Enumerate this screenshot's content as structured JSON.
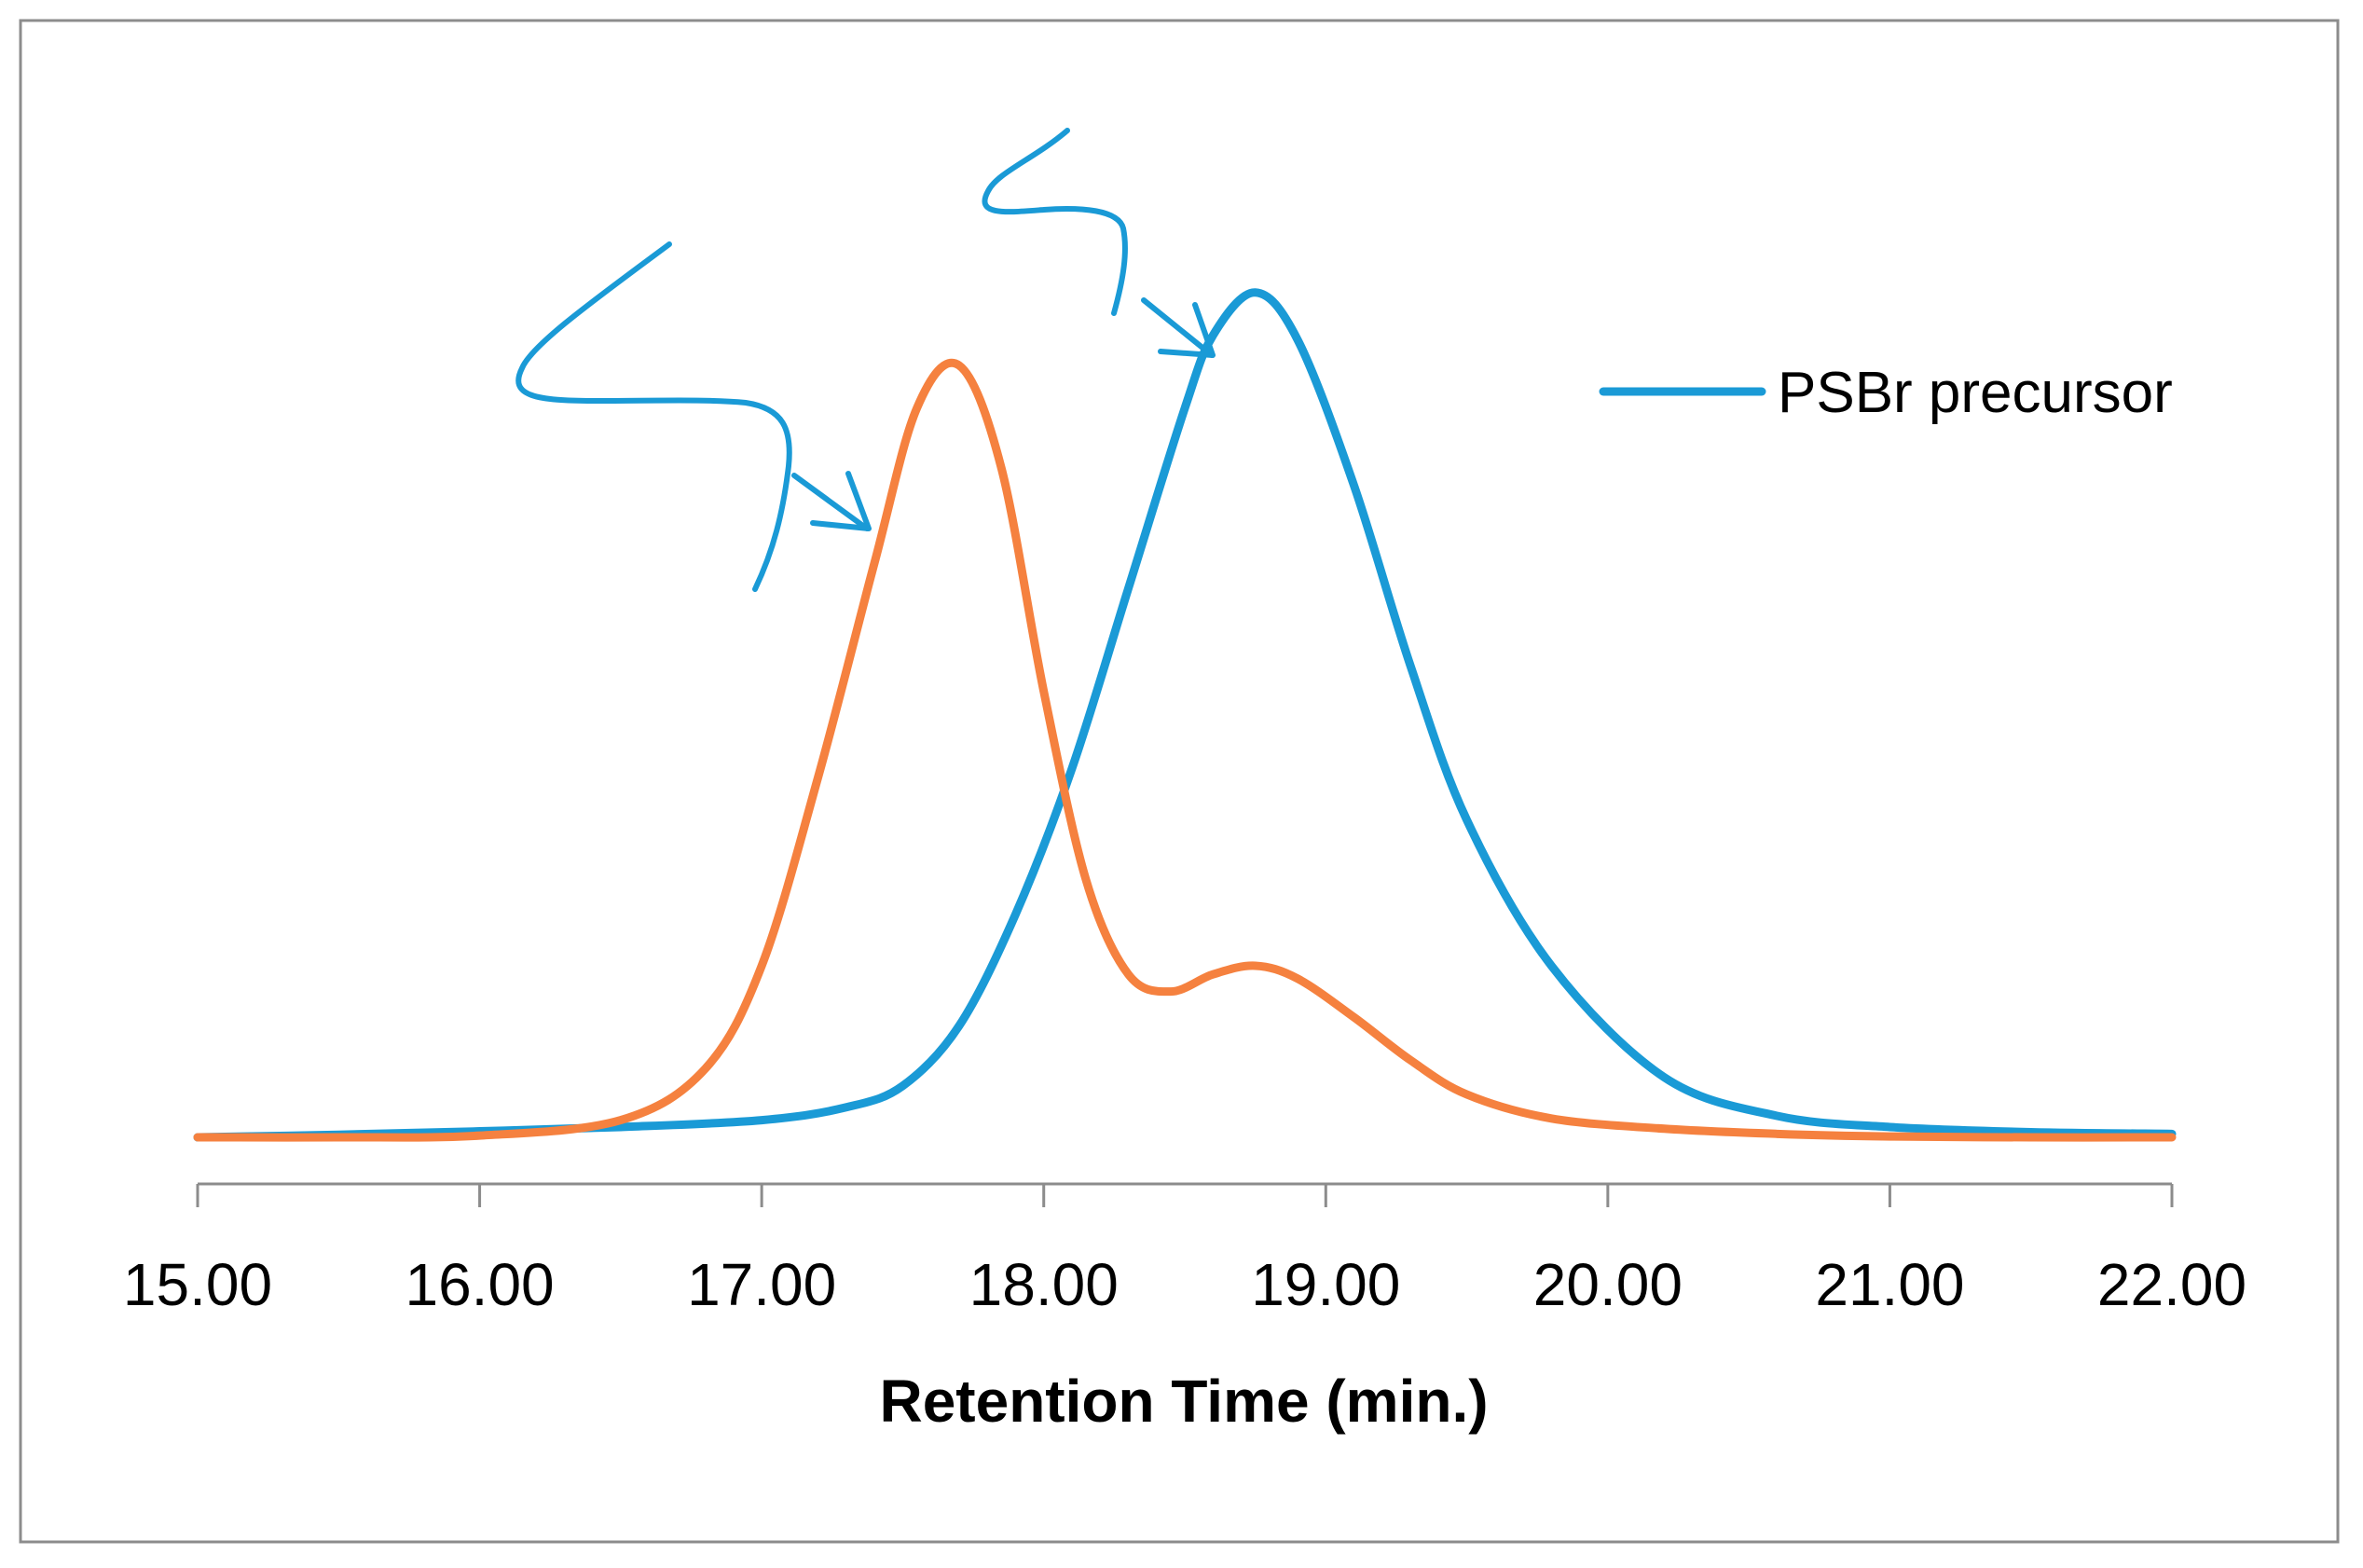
{
  "chart_data": {
    "type": "line",
    "title": "",
    "xlabel": "Retention Time (min.)",
    "ylabel": "",
    "xlim": [
      15.0,
      22.0
    ],
    "ylim": [
      0,
      1.0
    ],
    "x_ticks": [
      "15.00",
      "16.00",
      "17.00",
      "18.00",
      "19.00",
      "20.00",
      "21.00",
      "22.00"
    ],
    "grid": false,
    "legend_position": "top-right",
    "series": [
      {
        "name": "PSBr precursor",
        "color": "#1a9ad6",
        "in_legend": true,
        "x": [
          15.0,
          15.5,
          16.0,
          16.5,
          17.0,
          17.3,
          17.5,
          17.7,
          17.9,
          18.1,
          18.3,
          18.5,
          18.6,
          18.75,
          18.9,
          19.1,
          19.3,
          19.5,
          19.8,
          20.2,
          20.6,
          21.0,
          21.5,
          22.0
        ],
        "y": [
          0.0,
          0.003,
          0.007,
          0.012,
          0.02,
          0.035,
          0.06,
          0.13,
          0.26,
          0.43,
          0.64,
          0.85,
          0.935,
          0.985,
          0.93,
          0.76,
          0.55,
          0.37,
          0.2,
          0.07,
          0.025,
          0.012,
          0.006,
          0.004
        ]
      },
      {
        "name": "",
        "color": "#f5813f",
        "in_legend": false,
        "x": [
          15.0,
          15.5,
          16.0,
          16.5,
          16.8,
          17.0,
          17.2,
          17.4,
          17.55,
          17.7,
          17.85,
          18.0,
          18.15,
          18.3,
          18.45,
          18.6,
          18.75,
          18.9,
          19.1,
          19.3,
          19.5,
          19.8,
          20.2,
          20.6,
          21.0,
          21.5,
          22.0
        ],
        "y": [
          0.0,
          0.0,
          0.002,
          0.02,
          0.08,
          0.2,
          0.42,
          0.67,
          0.85,
          0.9,
          0.78,
          0.52,
          0.3,
          0.19,
          0.17,
          0.19,
          0.2,
          0.185,
          0.14,
          0.09,
          0.05,
          0.022,
          0.01,
          0.004,
          0.001,
          0.0,
          0.0
        ]
      }
    ],
    "annotations": [
      {
        "type": "hand-drawn-arrow",
        "target_series": "orange",
        "points_to": "peak"
      },
      {
        "type": "hand-drawn-arrow",
        "target_series": "blue",
        "points_to": "peak"
      }
    ]
  }
}
